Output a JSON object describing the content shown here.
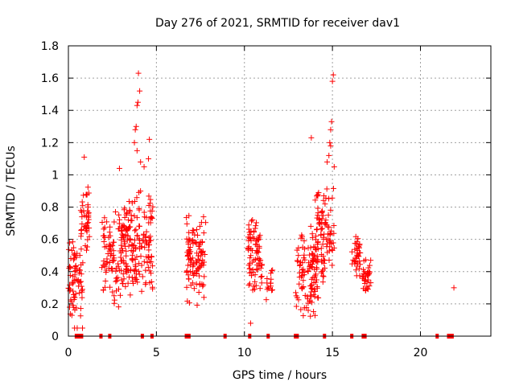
{
  "chart_data": {
    "type": "scatter",
    "title": "Day 276 of 2021, SRMTID for receiver dav1",
    "xlabel": "GPS time / hours",
    "ylabel": "SRMTID / TECUs",
    "xlim": [
      0,
      24
    ],
    "ylim": [
      0,
      1.8
    ],
    "xticks": [
      0,
      5,
      10,
      15,
      20
    ],
    "yticks": [
      0,
      0.2,
      0.4,
      0.6,
      0.8,
      1.0,
      1.2,
      1.4,
      1.6,
      1.8
    ],
    "xtick_labels": [
      "0",
      "5",
      "10",
      "15",
      "20"
    ],
    "ytick_labels": [
      "0",
      "0.2",
      "0.4",
      "0.6",
      "0.8",
      "1",
      "1.2",
      "1.4",
      "1.6",
      "1.8"
    ],
    "grid": true,
    "marker": "+",
    "color": "#ff0000",
    "clusters": [
      {
        "x_range": [
          0.0,
          0.8
        ],
        "y_range": [
          0.1,
          0.6
        ],
        "count": 70
      },
      {
        "x_range": [
          0.7,
          1.2
        ],
        "y_range": [
          0.4,
          0.95
        ],
        "count": 45
      },
      {
        "x_range": [
          1.9,
          3.0
        ],
        "y_range": [
          0.15,
          0.85
        ],
        "count": 80
      },
      {
        "x_range": [
          3.0,
          3.7
        ],
        "y_range": [
          0.2,
          0.9
        ],
        "count": 90
      },
      {
        "x_range": [
          3.7,
          4.8
        ],
        "y_range": [
          0.2,
          1.0
        ],
        "count": 100
      },
      {
        "x_range": [
          6.7,
          7.8
        ],
        "y_range": [
          0.15,
          0.78
        ],
        "count": 110
      },
      {
        "x_range": [
          10.2,
          11.0
        ],
        "y_range": [
          0.2,
          0.77
        ],
        "count": 80
      },
      {
        "x_range": [
          11.2,
          11.6
        ],
        "y_range": [
          0.2,
          0.45
        ],
        "count": 15
      },
      {
        "x_range": [
          12.9,
          14.2
        ],
        "y_range": [
          0.1,
          0.7
        ],
        "count": 110
      },
      {
        "x_range": [
          14.0,
          15.1
        ],
        "y_range": [
          0.3,
          1.0
        ],
        "count": 100
      },
      {
        "x_range": [
          16.1,
          16.6
        ],
        "y_range": [
          0.28,
          0.68
        ],
        "count": 35
      },
      {
        "x_range": [
          16.7,
          17.2
        ],
        "y_range": [
          0.25,
          0.5
        ],
        "count": 35
      }
    ],
    "points": [
      [
        0.9,
        1.11
      ],
      [
        2.9,
        1.04
      ],
      [
        3.8,
        1.28
      ],
      [
        3.85,
        1.3
      ],
      [
        3.9,
        1.43
      ],
      [
        3.95,
        1.45
      ],
      [
        3.98,
        1.63
      ],
      [
        4.05,
        1.52
      ],
      [
        3.75,
        1.2
      ],
      [
        4.1,
        1.08
      ],
      [
        4.6,
        1.22
      ],
      [
        4.55,
        1.1
      ],
      [
        3.9,
        1.15
      ],
      [
        4.3,
        1.05
      ],
      [
        10.35,
        0.08
      ],
      [
        13.8,
        1.23
      ],
      [
        14.8,
        1.12
      ],
      [
        14.85,
        1.2
      ],
      [
        14.9,
        1.28
      ],
      [
        14.95,
        1.33
      ],
      [
        15.0,
        1.58
      ],
      [
        15.05,
        1.62
      ],
      [
        14.9,
        1.18
      ],
      [
        15.1,
        1.05
      ],
      [
        14.7,
        1.08
      ],
      [
        21.9,
        0.3
      ],
      [
        0.35,
        0.05
      ],
      [
        0.5,
        0.05
      ],
      [
        0.8,
        0.05
      ]
    ],
    "zero_markers_x": [
      0.45,
      0.6,
      0.75,
      1.85,
      2.35,
      4.2,
      4.75,
      6.7,
      6.85,
      8.9,
      10.3,
      11.35,
      12.9,
      13.0,
      14.55,
      16.1,
      16.75,
      16.85,
      20.95,
      21.6,
      21.7,
      21.8
    ]
  }
}
